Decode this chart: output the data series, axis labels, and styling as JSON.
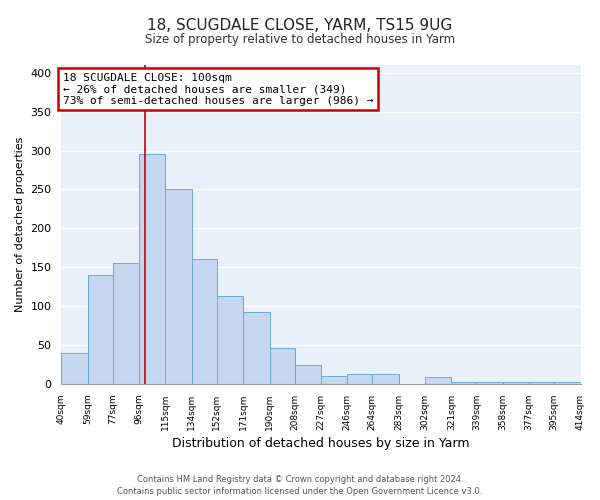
{
  "title": "18, SCUGDALE CLOSE, YARM, TS15 9UG",
  "subtitle": "Size of property relative to detached houses in Yarm",
  "xlabel": "Distribution of detached houses by size in Yarm",
  "ylabel": "Number of detached properties",
  "bar_color": "#c5d8f0",
  "bar_edge_color": "#6aaad4",
  "bg_color": "#e8f0fa",
  "grid_color": "#ffffff",
  "vline_x": 100,
  "vline_color": "#cc0000",
  "annotation_title": "18 SCUGDALE CLOSE: 100sqm",
  "annotation_line1": "← 26% of detached houses are smaller (349)",
  "annotation_line2": "73% of semi-detached houses are larger (986) →",
  "annotation_box_color": "#ffffff",
  "annotation_box_edge": "#cc0000",
  "bin_edges": [
    40,
    59,
    77,
    96,
    115,
    134,
    152,
    171,
    190,
    208,
    227,
    246,
    264,
    283,
    302,
    321,
    339,
    358,
    377,
    395,
    414
  ],
  "bin_labels": [
    "40sqm",
    "59sqm",
    "77sqm",
    "96sqm",
    "115sqm",
    "134sqm",
    "152sqm",
    "171sqm",
    "190sqm",
    "208sqm",
    "227sqm",
    "246sqm",
    "264sqm",
    "283sqm",
    "302sqm",
    "321sqm",
    "339sqm",
    "358sqm",
    "377sqm",
    "395sqm",
    "414sqm"
  ],
  "bar_heights": [
    40,
    140,
    155,
    295,
    250,
    160,
    113,
    92,
    46,
    25,
    10,
    13,
    13,
    0,
    9,
    2,
    2,
    3,
    2,
    3
  ],
  "ylim": [
    0,
    410
  ],
  "yticks": [
    0,
    50,
    100,
    150,
    200,
    250,
    300,
    350,
    400
  ],
  "footer1": "Contains HM Land Registry data © Crown copyright and database right 2024.",
  "footer2": "Contains public sector information licensed under the Open Government Licence v3.0."
}
